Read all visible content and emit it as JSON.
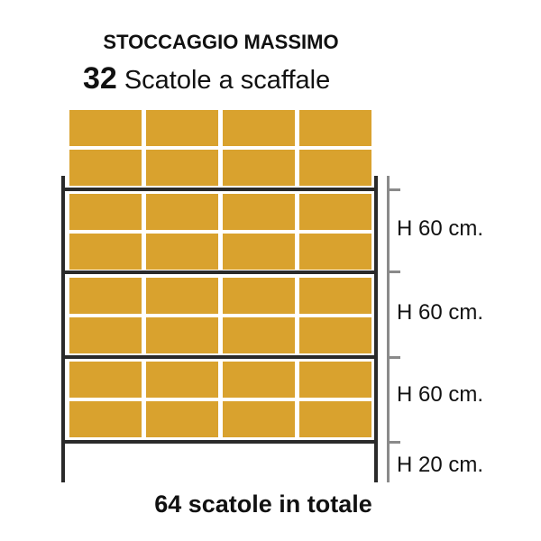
{
  "header": {
    "title": "STOCCAGGIO MASSIMO",
    "count": "32",
    "count_label": "Scatole a scaffale"
  },
  "rack": {
    "columns": 4,
    "box_rows": 8,
    "box_color": "#d9a22e",
    "frame_color": "#2a2a2a",
    "measure_color": "#8a8a8a"
  },
  "heights": [
    "H 60 cm.",
    "H 60 cm.",
    "H 60 cm.",
    "H 20 cm."
  ],
  "footer": {
    "total": "64 scatole in totale"
  }
}
